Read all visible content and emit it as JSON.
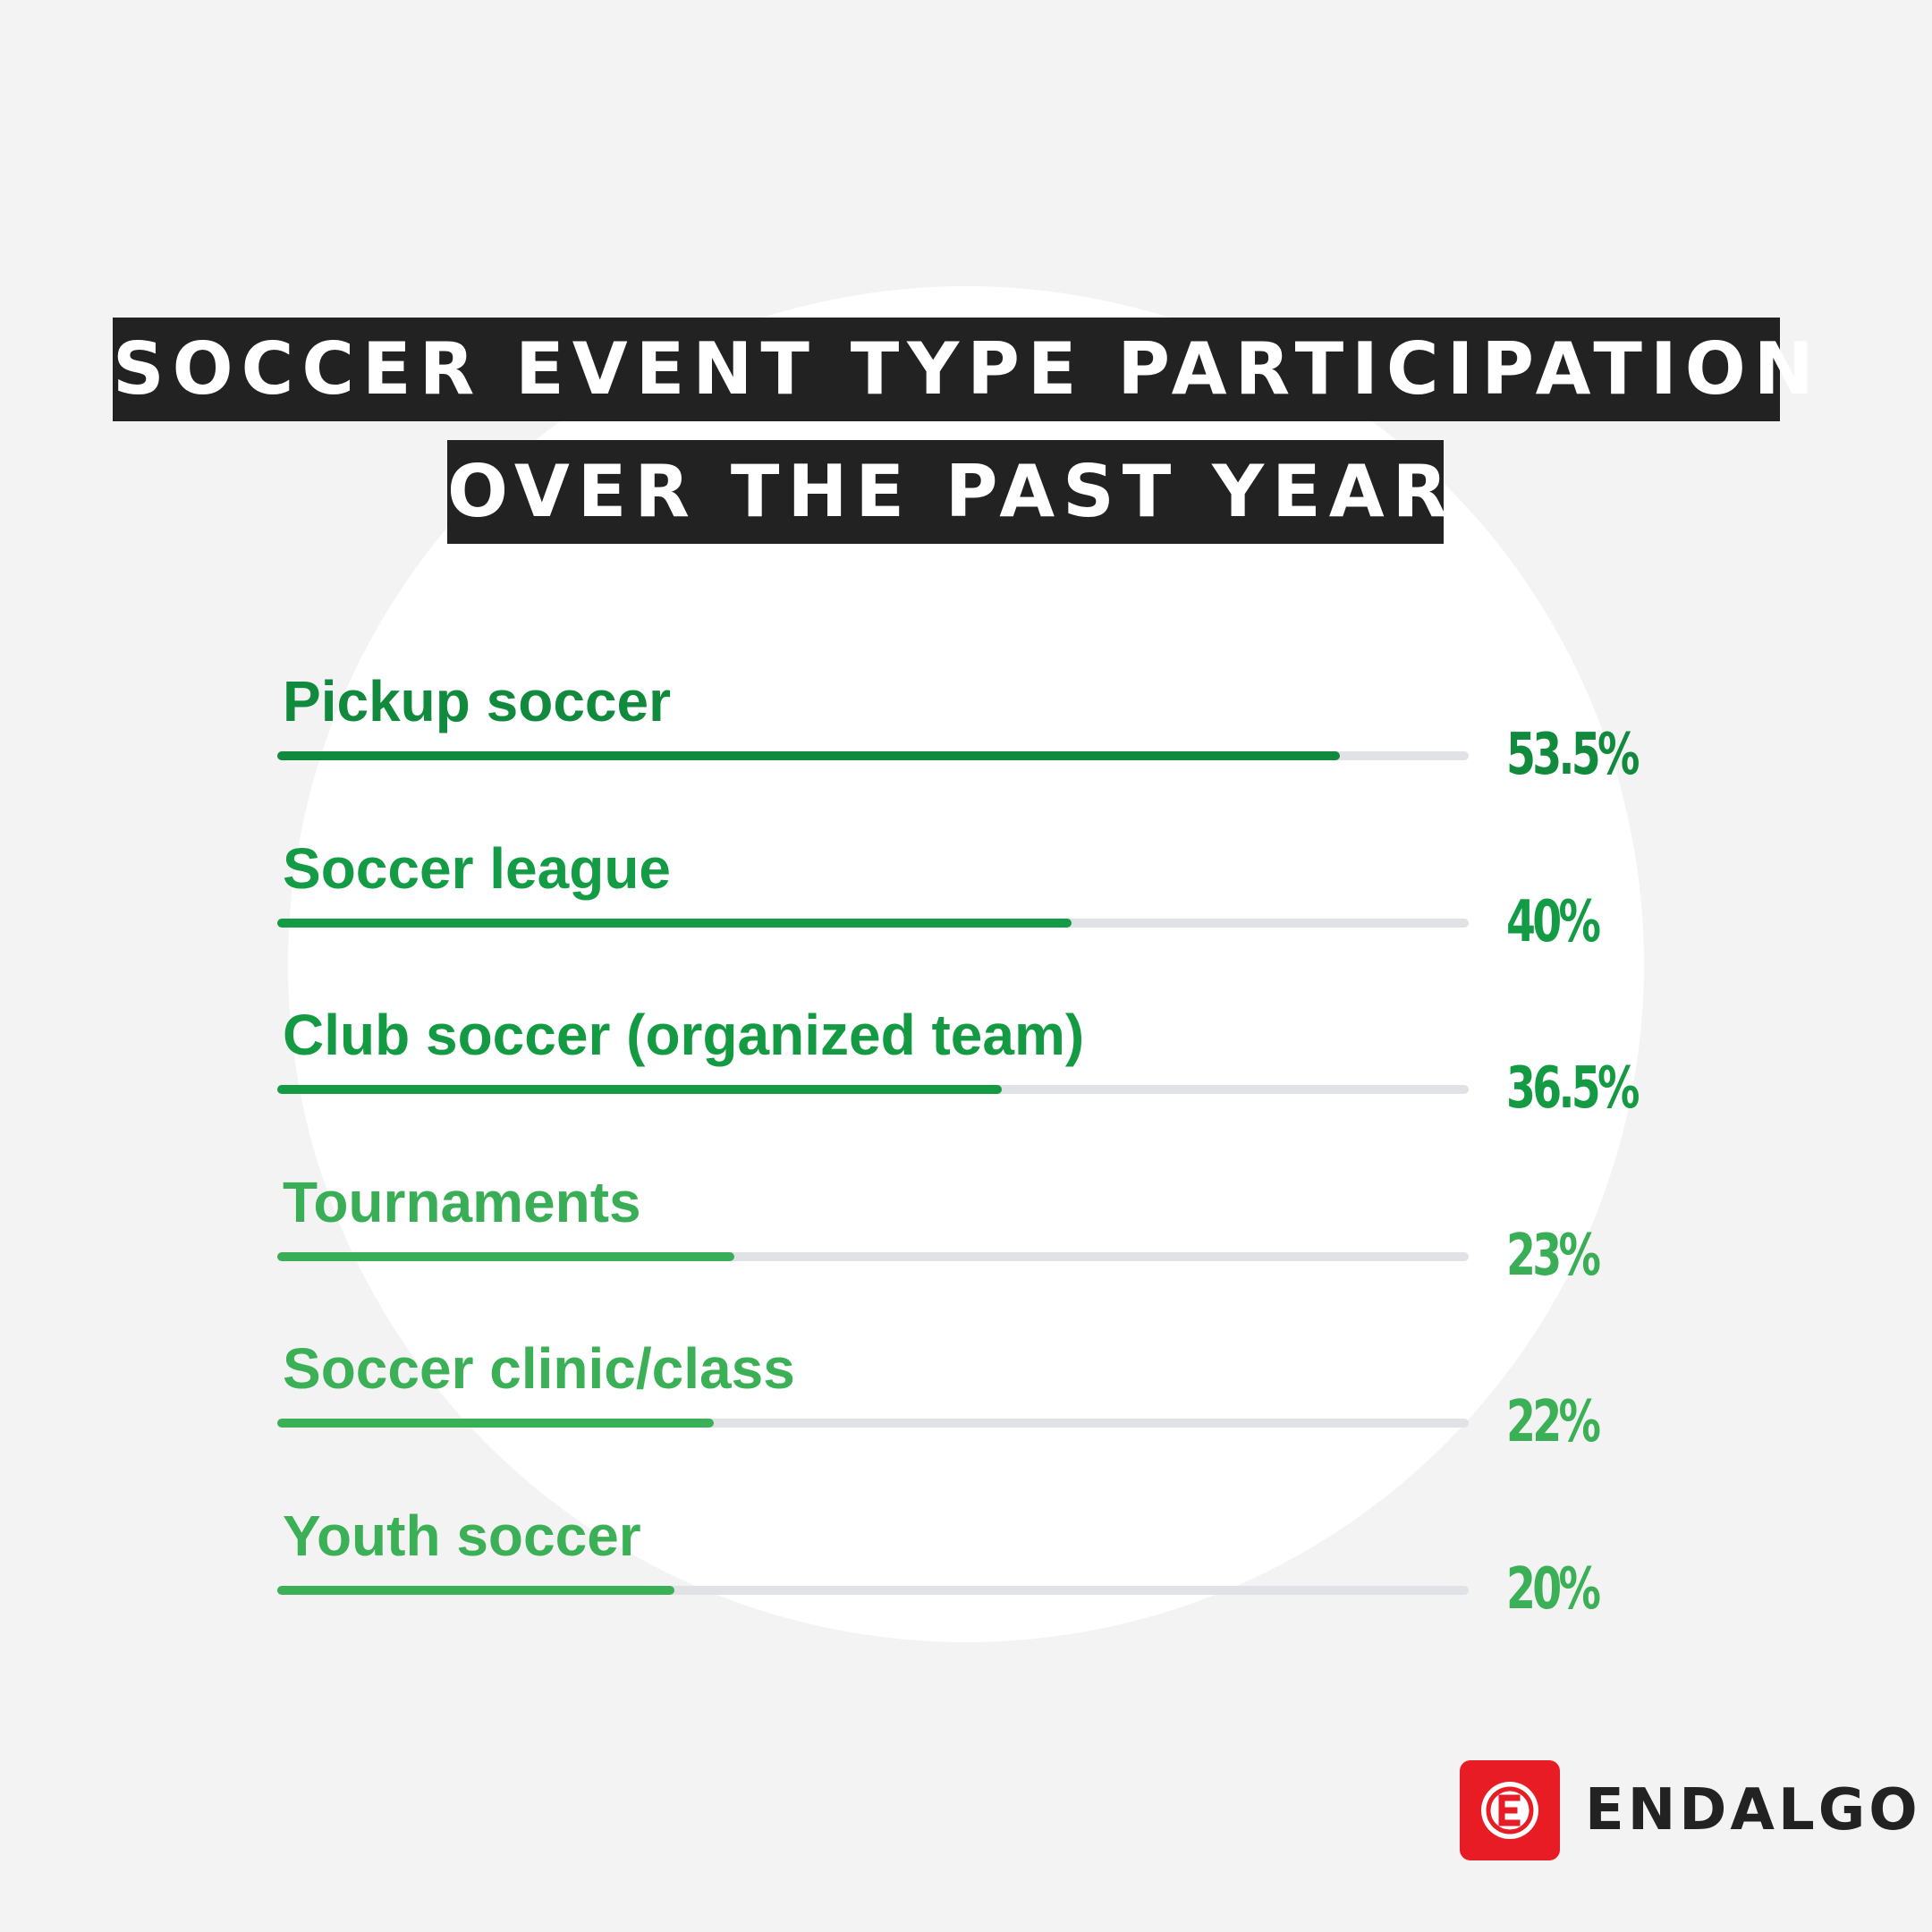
{
  "title": {
    "line1": "SOCCER EVENT TYPE PARTICIPATION",
    "line2": "OVER THE PAST YEAR"
  },
  "brand": {
    "name": "ENDALGO",
    "color": "#e81c24",
    "icon": "endalgo-logo-icon"
  },
  "colors": {
    "background": "#f3f3f3",
    "track": "#e0e2e5"
  },
  "chart_data": {
    "type": "bar",
    "orientation": "horizontal",
    "title": "SOCCER EVENT TYPE PARTICIPATION OVER THE PAST YEAR",
    "categories": [
      "Pickup soccer",
      "Soccer league",
      "Club soccer (organized team)",
      "Tournaments",
      "Soccer clinic/class",
      "Youth soccer"
    ],
    "values": [
      53.5,
      40,
      36.5,
      23,
      22,
      20
    ],
    "value_labels": [
      "53.5%",
      "40%",
      "36.5%",
      "23%",
      "22%",
      "20%"
    ],
    "colors": [
      "#118a3e",
      "#149b45",
      "#159a44",
      "#3aae57",
      "#3bb056",
      "#3bb056"
    ],
    "xlim": [
      0,
      60
    ],
    "grid": false,
    "legend": "none"
  }
}
